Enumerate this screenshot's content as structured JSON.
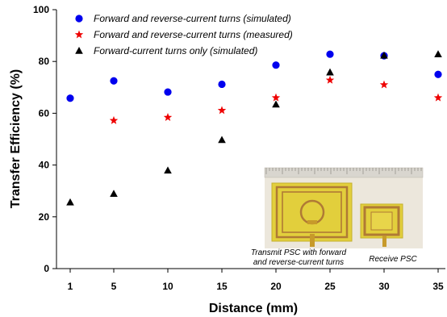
{
  "chart_data": {
    "type": "scatter",
    "xlabel": "Distance (mm)",
    "ylabel": "Transfer Efficiency (%)",
    "categories": [
      "1",
      "5",
      "10",
      "15",
      "20",
      "25",
      "30",
      "35"
    ],
    "ylim": [
      0,
      100
    ],
    "yticks": [
      0,
      20,
      40,
      60,
      80,
      100
    ],
    "grid": false,
    "legend_position": "top-left",
    "series": [
      {
        "name": "Forward and reverse-current turns (simulated)",
        "marker": "circle",
        "color": "#0000ee",
        "values": [
          65.8,
          72.5,
          68.2,
          71.2,
          78.6,
          82.8,
          82.2,
          75.0
        ]
      },
      {
        "name": "Forward and reverse-current turns (measured)",
        "marker": "star",
        "color": "#ee0000",
        "values": [
          null,
          57.2,
          58.4,
          61.1,
          66.0,
          72.8,
          71.0,
          66.0
        ]
      },
      {
        "name": "Forward-current turns only (simulated)",
        "marker": "triangle",
        "color": "#000000",
        "values": [
          25.6,
          28.9,
          37.9,
          49.7,
          63.4,
          75.8,
          82.3,
          82.8
        ]
      }
    ],
    "inset_photo": {
      "caption_transmit": [
        "Transmit PSC with forward",
        "and reverse-current turns"
      ],
      "caption_receive": "Receive PSC"
    }
  }
}
